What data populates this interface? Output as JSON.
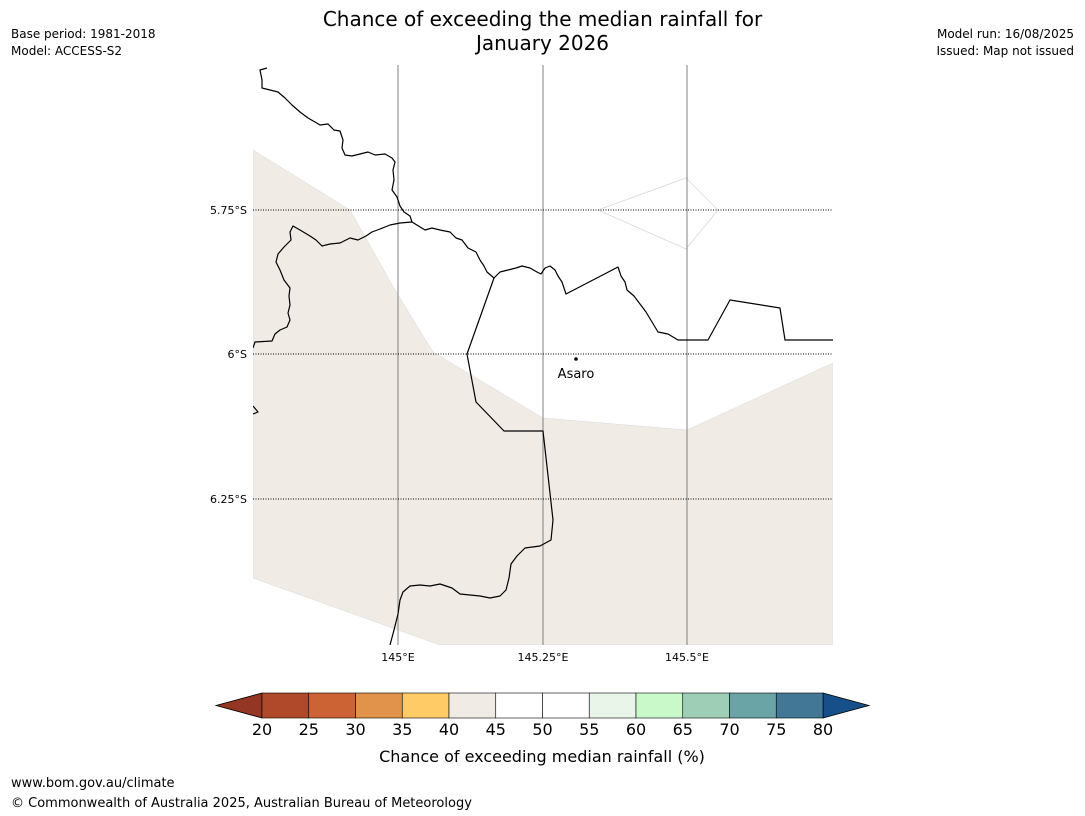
{
  "header": {
    "title_line1": "Chance of exceeding the median rainfall for",
    "title_line2": "January 2026",
    "base_period": "Base period: 1981-2018",
    "model": "Model: ACCESS-S2",
    "model_run": "Model run: 16/08/2025",
    "issued": "Issued: Map not issued"
  },
  "map": {
    "lat_labels": [
      "5.75°S",
      "6°S",
      "6.25°S"
    ],
    "lon_labels": [
      "145°E",
      "145.25°E",
      "145.5°E"
    ],
    "place": {
      "name": "Asaro"
    },
    "colors": {
      "fill_40_45": "#f0ebe5",
      "fill_50_55": "#ffffff",
      "border": "#000000",
      "gridline_lon": "#808080",
      "gridline_lat": "#000000"
    }
  },
  "colorbar": {
    "ticks": [
      "20",
      "25",
      "30",
      "35",
      "40",
      "45",
      "50",
      "55",
      "60",
      "65",
      "70",
      "75",
      "80"
    ],
    "colors": [
      "#b0492a",
      "#cc6334",
      "#e2934b",
      "#fecb66",
      "#f0ebe5",
      "#ffffff",
      "#ffffff",
      "#e8f5e8",
      "#c9f9c9",
      "#9ecfb6",
      "#6ba4a6",
      "#427896"
    ],
    "under_color": "#933623",
    "over_color": "#164f8a",
    "label": "Chance of exceeding median rainfall (%)"
  },
  "footer": {
    "url": "www.bom.gov.au/climate",
    "copyright": "© Commonwealth of Australia 2025, Australian Bureau of Meteorology"
  }
}
